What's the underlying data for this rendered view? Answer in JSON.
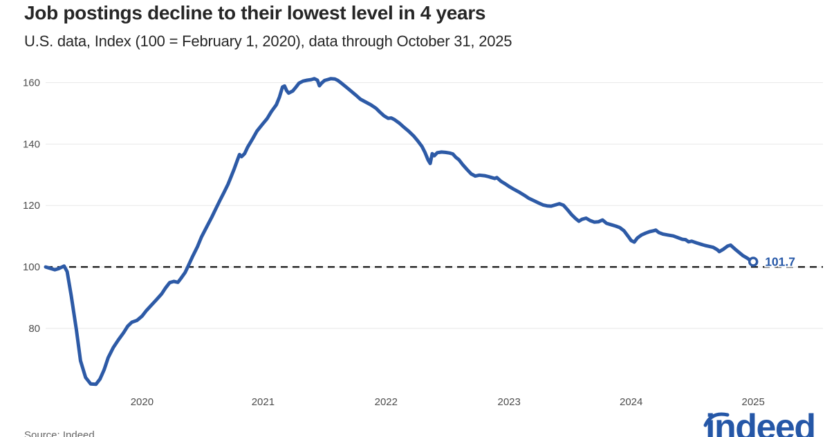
{
  "header": {
    "title": "Job postings decline to their lowest level in 4 years",
    "subtitle": "U.S. data, Index (100 = February 1, 2020), data through October 31, 2025"
  },
  "footer": {
    "source": "Source: Indeed",
    "logo_text": "indeed"
  },
  "colors": {
    "line": "#2d5aa6",
    "accent": "#2557a7",
    "grid": "#e8e8e8",
    "dash": "#1c1c1c",
    "text": "#262626",
    "tick": "#4c4c4c",
    "muted": "#666666"
  },
  "chart_data": {
    "type": "line",
    "title": "Job postings decline to their lowest level in 4 years",
    "subtitle": "U.S. data, Index (100 = February 1, 2020), data through October 31, 2025",
    "grid": "horizontal-only",
    "legend": "none",
    "x_unit": "months since February 2020",
    "x_domain": [
      0,
      75.8
    ],
    "y_domain": [
      58.6,
      164.4
    ],
    "y_ticks": [
      160,
      140,
      120,
      100,
      80
    ],
    "x_ticks": [
      {
        "m": 9.4,
        "label": "2020"
      },
      {
        "m": 21.2,
        "label": "2021"
      },
      {
        "m": 33.2,
        "label": "2022"
      },
      {
        "m": 45.2,
        "label": "2023"
      },
      {
        "m": 57.1,
        "label": "2024"
      },
      {
        "m": 69.0,
        "label": "2025"
      }
    ],
    "baseline": {
      "value": 100,
      "style": "dashed"
    },
    "end_point": {
      "m": 69.0,
      "value": 101.7,
      "label": "101.7"
    },
    "series": [
      {
        "name": "U.S. job postings index (100 = Feb 1, 2020)",
        "points": [
          [
            0,
            100
          ],
          [
            0.5,
            99.5
          ],
          [
            0.9,
            99.1
          ],
          [
            1.3,
            99.5
          ],
          [
            1.8,
            100.3
          ],
          [
            2.1,
            98.5
          ],
          [
            2.5,
            90.5
          ],
          [
            3,
            79.5
          ],
          [
            3.4,
            69.5
          ],
          [
            3.9,
            64
          ],
          [
            4.4,
            61.9
          ],
          [
            4.9,
            61.8
          ],
          [
            5.3,
            63.5
          ],
          [
            5.7,
            66.5
          ],
          [
            6.1,
            70.5
          ],
          [
            6.6,
            73.8
          ],
          [
            7.1,
            76.3
          ],
          [
            7.6,
            78.6
          ],
          [
            8,
            80.7
          ],
          [
            8.4,
            82
          ],
          [
            8.9,
            82.6
          ],
          [
            9.4,
            84
          ],
          [
            9.8,
            85.7
          ],
          [
            10.3,
            87.5
          ],
          [
            10.8,
            89.3
          ],
          [
            11.3,
            91.2
          ],
          [
            11.7,
            93.2
          ],
          [
            12.1,
            94.9
          ],
          [
            12.5,
            95.3
          ],
          [
            12.9,
            95
          ],
          [
            13.2,
            96.3
          ],
          [
            13.6,
            98.2
          ],
          [
            13.9,
            100.3
          ],
          [
            14.3,
            103.2
          ],
          [
            14.8,
            106.6
          ],
          [
            15.2,
            109.8
          ],
          [
            15.7,
            113
          ],
          [
            16.2,
            116.2
          ],
          [
            16.6,
            119
          ],
          [
            17,
            121.7
          ],
          [
            17.4,
            124.3
          ],
          [
            17.8,
            127
          ],
          [
            18.1,
            129.5
          ],
          [
            18.4,
            132
          ],
          [
            18.7,
            134.8
          ],
          [
            18.9,
            136.6
          ],
          [
            19.1,
            135.9
          ],
          [
            19.4,
            136.9
          ],
          [
            19.7,
            139
          ],
          [
            20.2,
            141.8
          ],
          [
            20.6,
            144.2
          ],
          [
            21.1,
            146.3
          ],
          [
            21.6,
            148.3
          ],
          [
            22,
            150.5
          ],
          [
            22.5,
            152.8
          ],
          [
            22.8,
            155.3
          ],
          [
            23.1,
            158.6
          ],
          [
            23.3,
            158.9
          ],
          [
            23.5,
            157.4
          ],
          [
            23.7,
            156.6
          ],
          [
            24.1,
            157.3
          ],
          [
            24.4,
            158.5
          ],
          [
            24.7,
            159.8
          ],
          [
            25.1,
            160.5
          ],
          [
            25.5,
            160.8
          ],
          [
            25.9,
            161
          ],
          [
            26.2,
            161.3
          ],
          [
            26.5,
            160.8
          ],
          [
            26.7,
            159
          ],
          [
            26.9,
            159.8
          ],
          [
            27.2,
            160.7
          ],
          [
            27.5,
            161
          ],
          [
            27.8,
            161.3
          ],
          [
            28.2,
            161.2
          ],
          [
            28.5,
            160.7
          ],
          [
            28.9,
            159.7
          ],
          [
            29.3,
            158.6
          ],
          [
            29.8,
            157.2
          ],
          [
            30.3,
            155.8
          ],
          [
            30.7,
            154.6
          ],
          [
            31.2,
            153.7
          ],
          [
            31.7,
            152.8
          ],
          [
            32.2,
            151.7
          ],
          [
            32.6,
            150.4
          ],
          [
            33,
            149.2
          ],
          [
            33.4,
            148.4
          ],
          [
            33.7,
            148.5
          ],
          [
            34,
            148
          ],
          [
            34.5,
            146.8
          ],
          [
            34.9,
            145.6
          ],
          [
            35.4,
            144.2
          ],
          [
            35.9,
            142.6
          ],
          [
            36.3,
            141
          ],
          [
            36.7,
            139.2
          ],
          [
            37,
            137.2
          ],
          [
            37.3,
            134.8
          ],
          [
            37.5,
            133.7
          ],
          [
            37.7,
            136.9
          ],
          [
            37.9,
            136.2
          ],
          [
            38.2,
            137.2
          ],
          [
            38.6,
            137.4
          ],
          [
            39,
            137.3
          ],
          [
            39.4,
            137.1
          ],
          [
            39.7,
            136.8
          ],
          [
            40,
            135.7
          ],
          [
            40.3,
            134.9
          ],
          [
            40.7,
            133.2
          ],
          [
            41.1,
            131.7
          ],
          [
            41.5,
            130.3
          ],
          [
            41.9,
            129.6
          ],
          [
            42.3,
            129.9
          ],
          [
            42.8,
            129.7
          ],
          [
            43.2,
            129.4
          ],
          [
            43.5,
            129.1
          ],
          [
            43.8,
            128.8
          ],
          [
            44,
            129.1
          ],
          [
            44.4,
            127.9
          ],
          [
            44.8,
            127.1
          ],
          [
            45.2,
            126.2
          ],
          [
            45.7,
            125.2
          ],
          [
            46.2,
            124.3
          ],
          [
            46.7,
            123.3
          ],
          [
            47.1,
            122.4
          ],
          [
            47.6,
            121.6
          ],
          [
            48.1,
            120.8
          ],
          [
            48.5,
            120.2
          ],
          [
            48.9,
            119.9
          ],
          [
            49.3,
            119.8
          ],
          [
            49.7,
            120.2
          ],
          [
            50.1,
            120.6
          ],
          [
            50.5,
            120.1
          ],
          [
            50.9,
            118.6
          ],
          [
            51.3,
            117
          ],
          [
            51.7,
            115.7
          ],
          [
            52,
            114.9
          ],
          [
            52.3,
            115.5
          ],
          [
            52.7,
            115.9
          ],
          [
            53.1,
            115.1
          ],
          [
            53.5,
            114.6
          ],
          [
            53.9,
            114.7
          ],
          [
            54.3,
            115.3
          ],
          [
            54.7,
            114.2
          ],
          [
            55.2,
            113.7
          ],
          [
            55.6,
            113.3
          ],
          [
            56,
            112.8
          ],
          [
            56.4,
            111.8
          ],
          [
            56.8,
            110
          ],
          [
            57.1,
            108.6
          ],
          [
            57.4,
            108.1
          ],
          [
            57.7,
            109.4
          ],
          [
            58.1,
            110.4
          ],
          [
            58.5,
            111
          ],
          [
            58.9,
            111.5
          ],
          [
            59.3,
            111.8
          ],
          [
            59.5,
            112
          ],
          [
            59.8,
            111.2
          ],
          [
            60.2,
            110.7
          ],
          [
            60.7,
            110.4
          ],
          [
            61.2,
            110.1
          ],
          [
            61.6,
            109.6
          ],
          [
            62.1,
            109
          ],
          [
            62.4,
            108.9
          ],
          [
            62.7,
            108.2
          ],
          [
            63,
            108.4
          ],
          [
            63.5,
            107.8
          ],
          [
            63.9,
            107.4
          ],
          [
            64.3,
            107
          ],
          [
            64.7,
            106.7
          ],
          [
            65.1,
            106.4
          ],
          [
            65.5,
            105.6
          ],
          [
            65.7,
            105
          ],
          [
            66.1,
            105.8
          ],
          [
            66.5,
            106.8
          ],
          [
            66.8,
            107.1
          ],
          [
            67.2,
            105.9
          ],
          [
            67.6,
            104.8
          ],
          [
            68,
            103.7
          ],
          [
            68.4,
            102.9
          ],
          [
            68.7,
            102.2
          ],
          [
            69,
            101.7
          ]
        ]
      }
    ]
  }
}
